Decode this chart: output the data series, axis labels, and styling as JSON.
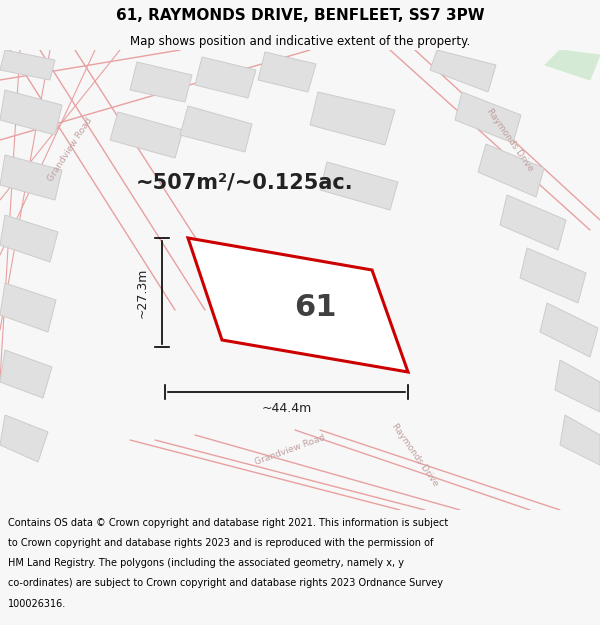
{
  "title": "61, RAYMONDS DRIVE, BENFLEET, SS7 3PW",
  "subtitle": "Map shows position and indicative extent of the property.",
  "footer_line1": "Contains OS data © Crown copyright and database right 2021. This information is subject",
  "footer_line2": "to Crown copyright and database rights 2023 and is reproduced with the permission of",
  "footer_line3": "HM Land Registry. The polygons (including the associated geometry, namely x, y",
  "footer_line4": "co-ordinates) are subject to Crown copyright and database rights 2023 Ordnance Survey",
  "footer_line5": "100026316.",
  "area_text": "~507m²/~0.125ac.",
  "width_label": "~44.4m",
  "height_label": "~27.3m",
  "plot_number": "61",
  "bg_color": "#f7f7f7",
  "map_bg": "#ffffff",
  "road_color": "#e8a0a0",
  "road_lw": 1.0,
  "building_fill": "#e0e0e0",
  "building_edge": "#cccccc",
  "highlight_edge": "#cc0000",
  "highlight_lw": 2.2,
  "green_fill": "#d4ead4",
  "dim_color": "#333333"
}
